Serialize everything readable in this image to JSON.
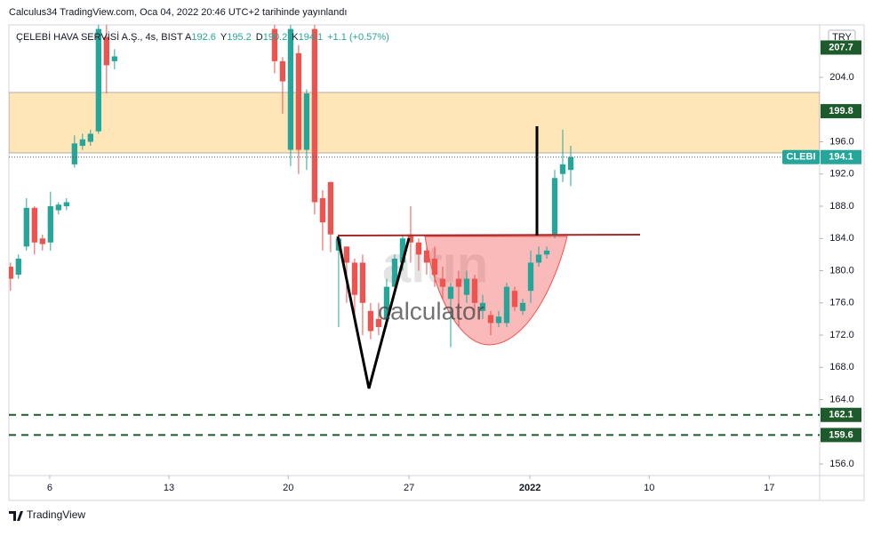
{
  "header": {
    "published": "Calculus34 TradingView.com, Oca 04, 2022 20:46 UTC+2 tarihinde yayınlandı",
    "symbol": "ÇELEBİ HAVA SERVİSİ A.Ş., 4s, BIST",
    "ohlc": [
      {
        "label": "A",
        "value": 192.6
      },
      {
        "label": "Y",
        "value": 195.2
      },
      {
        "label": "D",
        "value": 190.2
      },
      {
        "label": "K",
        "value": 194.1
      }
    ],
    "change": "+1.1 (+0.57%)"
  },
  "footer": "TradingView",
  "currency": "TRY",
  "watermark": [
    "altın",
    "calculator"
  ],
  "chart_data": {
    "type": "candlestick",
    "up_color": "#26a69a",
    "down_color": "#ef5350",
    "x": [
      0,
      1,
      2,
      3,
      4,
      5,
      6,
      7,
      8,
      9,
      10,
      11,
      12,
      13,
      33,
      34,
      35,
      36,
      37,
      38,
      39,
      40,
      41,
      42,
      43,
      44,
      45,
      46,
      47,
      48,
      49,
      50,
      51,
      52,
      53,
      54,
      55,
      56,
      57,
      58,
      59,
      60,
      61,
      62,
      63,
      64,
      65,
      66,
      67,
      68,
      69,
      70
    ],
    "open": [
      180.5,
      179.5,
      183,
      187.8,
      184,
      183.5,
      187.5,
      188,
      193.2,
      195.5,
      196,
      197.3,
      209,
      206,
      210,
      206,
      195,
      207,
      195,
      210,
      189,
      191,
      182.5,
      183,
      181,
      181,
      175,
      174,
      174,
      178,
      181,
      184.5,
      183.5,
      182.5,
      181.5,
      179,
      176.5,
      179,
      177,
      179,
      175,
      174.5,
      173.5,
      173.5,
      177.5,
      175,
      177.5,
      181,
      182,
      184.5,
      192,
      192.5
    ],
    "high": [
      181,
      182,
      189,
      188,
      184.5,
      189.8,
      188.5,
      189,
      196.8,
      197,
      197.5,
      210.5,
      210.5,
      207.5,
      210.5,
      206.5,
      210.5,
      208,
      202.5,
      210.5,
      190,
      191,
      184.5,
      183,
      181.5,
      182,
      176,
      176,
      179,
      182,
      184.5,
      188,
      184,
      183,
      183,
      180.5,
      178.5,
      180,
      180,
      179.5,
      177,
      175,
      175,
      178.5,
      178,
      176.5,
      182.5,
      183,
      183,
      192.5,
      197.5,
      195.5
    ],
    "low": [
      177.5,
      179,
      182.5,
      182,
      182.5,
      182.5,
      187,
      187.5,
      192.8,
      195,
      195.5,
      197,
      202,
      205,
      204.5,
      199.5,
      193,
      192,
      192.5,
      187,
      182.5,
      182.3,
      173,
      176,
      174,
      172,
      171.5,
      172,
      173,
      177,
      180,
      181,
      180,
      179.5,
      178,
      176.5,
      170.5,
      173,
      176,
      175,
      174,
      172,
      173,
      173,
      175,
      174.5,
      176,
      180.5,
      181.5,
      184,
      191,
      190.5
    ],
    "close": [
      179,
      181.5,
      187.8,
      183.5,
      183.3,
      188,
      188.2,
      188.5,
      195.8,
      196.3,
      197,
      210,
      205.5,
      206.6,
      206,
      203.5,
      210,
      195,
      202,
      188.5,
      186,
      184.5,
      184,
      181,
      177,
      176,
      172.5,
      173,
      178,
      181.5,
      184,
      183.5,
      182,
      181,
      179.5,
      178,
      178,
      178,
      179,
      176,
      176,
      173.5,
      174.3,
      178,
      175.5,
      176,
      181,
      182,
      182.5,
      191.5,
      193.2,
      194.1
    ],
    "symbol_tag": "CLEBI",
    "last_price": 194.1,
    "levels": [
      {
        "value": 207.7,
        "color": "#1e5b2c"
      },
      {
        "value": 199.8,
        "color": "#1e5b2c"
      },
      {
        "value": 162.1,
        "color": "#1e5b2c",
        "dashed": true
      },
      {
        "value": 159.6,
        "color": "#1e5b2c",
        "dashed": true
      }
    ],
    "xlim": [
      -0.2,
      101.1
    ],
    "xticks": [
      {
        "value": 4.9,
        "label": "6"
      },
      {
        "value": 19.8,
        "label": "13"
      },
      {
        "value": 34.7,
        "label": "20"
      },
      {
        "value": 49.8,
        "label": "27"
      },
      {
        "value": 64.9,
        "label": "2022"
      },
      {
        "value": 79.8,
        "label": "10"
      },
      {
        "value": 94.8,
        "label": "17"
      }
    ],
    "ylim": [
      154.57,
      210.51
    ],
    "yticks": [
      {
        "value": 204,
        "label": "204.0"
      },
      {
        "value": 196,
        "label": "196.0"
      },
      {
        "value": 192,
        "label": "192.0"
      },
      {
        "value": 188,
        "label": "188.0"
      },
      {
        "value": 184,
        "label": "184.0"
      },
      {
        "value": 180,
        "label": "180.0"
      },
      {
        "value": 176,
        "label": "176.0"
      },
      {
        "value": 172,
        "label": "172.0"
      },
      {
        "value": 168,
        "label": "168.0"
      },
      {
        "value": 164,
        "label": "164.0"
      },
      {
        "value": 156,
        "label": "156.0"
      }
    ],
    "grid": false
  }
}
